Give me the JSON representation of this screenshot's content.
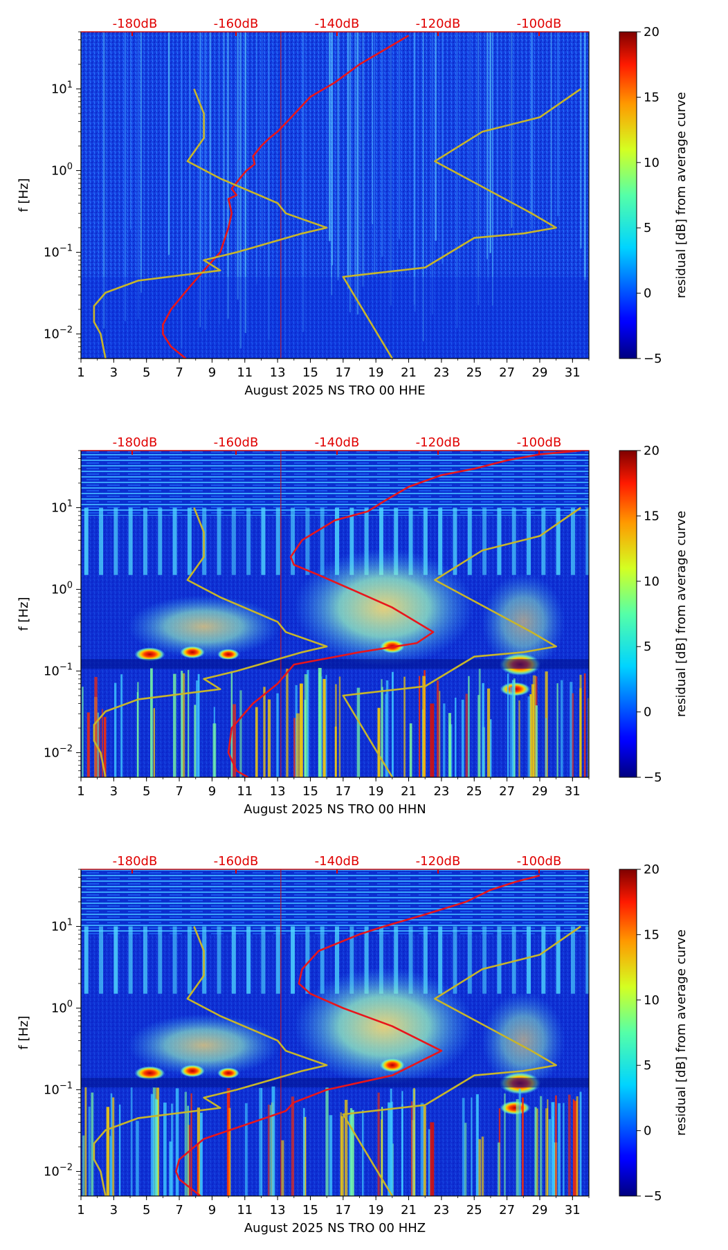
{
  "chart_data": [
    {
      "type": "heatmap",
      "title": "",
      "xlabel": "August 2025 NS TRO 00 HHE",
      "ylabel": "f [Hz]",
      "x_range": [
        1,
        32
      ],
      "x_ticks": [
        1,
        3,
        5,
        7,
        9,
        11,
        13,
        15,
        17,
        19,
        21,
        23,
        25,
        27,
        29,
        31
      ],
      "y_scale": "log",
      "y_range": [
        0.005,
        50
      ],
      "y_ticks": [
        {
          "value": 0.01,
          "base": "10",
          "exp": "−2"
        },
        {
          "value": 0.1,
          "base": "10",
          "exp": "−1"
        },
        {
          "value": 1,
          "base": "10",
          "exp": "0"
        },
        {
          "value": 10,
          "base": "10",
          "exp": "1"
        }
      ],
      "db_axis": {
        "labels": [
          "-180dB",
          "-160dB",
          "-140dB",
          "-120dB",
          "-100dB"
        ],
        "positions_day": [
          5.0,
          12.8,
          20.5,
          28.3,
          36.0
        ]
      },
      "colorbar": {
        "label": "residual [dB] from average curve",
        "min": -5,
        "max": 20,
        "ticks": [
          "−5",
          "0",
          "5",
          "10",
          "15",
          "20"
        ],
        "tick_values": [
          -5,
          0,
          5,
          10,
          15,
          20
        ]
      },
      "series": [
        {
          "name": "average PSD curve",
          "color": "#e8151b",
          "points": [
            [
              7.4,
              0.005
            ],
            [
              6.5,
              0.007
            ],
            [
              6.0,
              0.01
            ],
            [
              6.0,
              0.013
            ],
            [
              6.5,
              0.02
            ],
            [
              7.5,
              0.035
            ],
            [
              8.5,
              0.06
            ],
            [
              9.5,
              0.1
            ],
            [
              10.0,
              0.2
            ],
            [
              10.2,
              0.3
            ],
            [
              10.0,
              0.45
            ],
            [
              10.5,
              0.5
            ],
            [
              10.2,
              0.6
            ],
            [
              10.8,
              0.85
            ],
            [
              11.1,
              1.0
            ],
            [
              11.6,
              1.2
            ],
            [
              11.5,
              1.5
            ],
            [
              12.0,
              2.0
            ],
            [
              12.5,
              2.5
            ],
            [
              13.0,
              3.0
            ],
            [
              13.6,
              4.0
            ],
            [
              15.0,
              8.0
            ],
            [
              16.5,
              12.0
            ],
            [
              18.0,
              20.0
            ],
            [
              19.5,
              30.0
            ],
            [
              21.0,
              45.0
            ]
          ]
        },
        {
          "name": "low noise model",
          "color": "#c8b62a",
          "points": [
            [
              2.5,
              0.005
            ],
            [
              2.2,
              0.01
            ],
            [
              1.8,
              0.014
            ],
            [
              1.8,
              0.022
            ],
            [
              2.5,
              0.032
            ],
            [
              4.5,
              0.045
            ],
            [
              9.5,
              0.06
            ],
            [
              8.5,
              0.08
            ],
            [
              10.5,
              0.1
            ],
            [
              14.5,
              0.17
            ],
            [
              16.0,
              0.2
            ],
            [
              13.5,
              0.3
            ],
            [
              13.0,
              0.4
            ],
            [
              9.5,
              0.8
            ],
            [
              7.5,
              1.3
            ],
            [
              8.5,
              2.5
            ],
            [
              8.5,
              5.0
            ],
            [
              7.9,
              10.0
            ]
          ]
        },
        {
          "name": "high noise model",
          "color": "#c8b62a",
          "points": [
            [
              20.0,
              0.005
            ],
            [
              17.0,
              0.05
            ],
            [
              22.0,
              0.065
            ],
            [
              25.0,
              0.15
            ],
            [
              28.0,
              0.17
            ],
            [
              30.0,
              0.2
            ],
            [
              28.5,
              0.3
            ],
            [
              22.6,
              1.3
            ],
            [
              25.5,
              3.0
            ],
            [
              29.0,
              4.5
            ],
            [
              31.5,
              10.0
            ]
          ]
        }
      ]
    },
    {
      "type": "heatmap",
      "title": "",
      "xlabel": "August 2025 NS TRO 00 HHN",
      "ylabel": "f [Hz]",
      "x_range": [
        1,
        32
      ],
      "x_ticks": [
        1,
        3,
        5,
        7,
        9,
        11,
        13,
        15,
        17,
        19,
        21,
        23,
        25,
        27,
        29,
        31
      ],
      "y_scale": "log",
      "y_range": [
        0.005,
        50
      ],
      "y_ticks": [
        {
          "value": 0.01,
          "base": "10",
          "exp": "−2"
        },
        {
          "value": 0.1,
          "base": "10",
          "exp": "−1"
        },
        {
          "value": 1,
          "base": "10",
          "exp": "0"
        },
        {
          "value": 10,
          "base": "10",
          "exp": "1"
        }
      ],
      "db_axis": {
        "labels": [
          "-180dB",
          "-160dB",
          "-140dB",
          "-120dB",
          "-100dB"
        ],
        "positions_day": [
          5.0,
          12.8,
          20.5,
          28.3,
          36.0
        ]
      },
      "colorbar": {
        "label": "residual [dB] from average curve",
        "min": -5,
        "max": 20,
        "ticks": [
          "−5",
          "0",
          "5",
          "10",
          "15",
          "20"
        ],
        "tick_values": [
          -5,
          0,
          5,
          10,
          15,
          20
        ]
      },
      "series": [
        {
          "name": "average PSD curve",
          "color": "#e8151b",
          "points": [
            [
              11.2,
              0.005
            ],
            [
              10.5,
              0.006
            ],
            [
              10.0,
              0.01
            ],
            [
              10.2,
              0.02
            ],
            [
              11.5,
              0.04
            ],
            [
              13.0,
              0.07
            ],
            [
              14.0,
              0.12
            ],
            [
              18.0,
              0.17
            ],
            [
              21.5,
              0.22
            ],
            [
              22.5,
              0.3
            ],
            [
              20.0,
              0.6
            ],
            [
              17.5,
              1.0
            ],
            [
              15.5,
              1.5
            ],
            [
              14.0,
              2.0
            ],
            [
              13.8,
              2.5
            ],
            [
              14.5,
              4.0
            ],
            [
              16.5,
              7.0
            ],
            [
              18.5,
              9.0
            ],
            [
              19.5,
              12.0
            ],
            [
              21.0,
              18.0
            ],
            [
              23.0,
              25.0
            ],
            [
              25.0,
              30.0
            ],
            [
              27.0,
              38.0
            ],
            [
              29.0,
              45.0
            ],
            [
              31.5,
              50.0
            ]
          ]
        },
        {
          "name": "low noise model",
          "color": "#c8b62a",
          "points": [
            [
              2.5,
              0.005
            ],
            [
              2.2,
              0.01
            ],
            [
              1.8,
              0.014
            ],
            [
              1.8,
              0.022
            ],
            [
              2.5,
              0.032
            ],
            [
              4.5,
              0.045
            ],
            [
              9.5,
              0.06
            ],
            [
              8.5,
              0.08
            ],
            [
              10.5,
              0.1
            ],
            [
              14.5,
              0.17
            ],
            [
              16.0,
              0.2
            ],
            [
              13.5,
              0.3
            ],
            [
              13.0,
              0.4
            ],
            [
              9.5,
              0.8
            ],
            [
              7.5,
              1.3
            ],
            [
              8.5,
              2.5
            ],
            [
              8.5,
              5.0
            ],
            [
              7.9,
              10.0
            ]
          ]
        },
        {
          "name": "high noise model",
          "color": "#c8b62a",
          "points": [
            [
              20.0,
              0.005
            ],
            [
              17.0,
              0.05
            ],
            [
              22.0,
              0.065
            ],
            [
              25.0,
              0.15
            ],
            [
              28.0,
              0.17
            ],
            [
              30.0,
              0.2
            ],
            [
              28.5,
              0.3
            ],
            [
              22.6,
              1.3
            ],
            [
              25.5,
              3.0
            ],
            [
              29.0,
              4.5
            ],
            [
              31.5,
              10.0
            ]
          ]
        }
      ]
    },
    {
      "type": "heatmap",
      "title": "",
      "xlabel": "August 2025 NS TRO 00 HHZ",
      "ylabel": "f [Hz]",
      "x_range": [
        1,
        32
      ],
      "x_ticks": [
        1,
        3,
        5,
        7,
        9,
        11,
        13,
        15,
        17,
        19,
        21,
        23,
        25,
        27,
        29,
        31
      ],
      "y_scale": "log",
      "y_range": [
        0.005,
        50
      ],
      "y_ticks": [
        {
          "value": 0.01,
          "base": "10",
          "exp": "−2"
        },
        {
          "value": 0.1,
          "base": "10",
          "exp": "−1"
        },
        {
          "value": 1,
          "base": "10",
          "exp": "0"
        },
        {
          "value": 10,
          "base": "10",
          "exp": "1"
        }
      ],
      "db_axis": {
        "labels": [
          "-180dB",
          "-160dB",
          "-140dB",
          "-120dB",
          "-100dB"
        ],
        "positions_day": [
          5.0,
          12.8,
          20.5,
          28.3,
          36.0
        ]
      },
      "colorbar": {
        "label": "residual [dB] from average curve",
        "min": -5,
        "max": 20,
        "ticks": [
          "−5",
          "0",
          "5",
          "10",
          "15",
          "20"
        ],
        "tick_values": [
          -5,
          0,
          5,
          10,
          15,
          20
        ]
      },
      "series": [
        {
          "name": "average PSD curve",
          "color": "#e8151b",
          "points": [
            [
              8.3,
              0.005
            ],
            [
              7.0,
              0.008
            ],
            [
              6.8,
              0.01
            ],
            [
              7.0,
              0.014
            ],
            [
              8.5,
              0.025
            ],
            [
              11.5,
              0.04
            ],
            [
              13.5,
              0.055
            ],
            [
              14.0,
              0.07
            ],
            [
              16.0,
              0.1
            ],
            [
              20.0,
              0.15
            ],
            [
              23.0,
              0.3
            ],
            [
              20.0,
              0.6
            ],
            [
              17.0,
              1.0
            ],
            [
              15.0,
              1.5
            ],
            [
              14.3,
              2.0
            ],
            [
              14.5,
              3.0
            ],
            [
              15.5,
              5.0
            ],
            [
              18.0,
              8.0
            ],
            [
              19.5,
              10.0
            ],
            [
              22.0,
              14.0
            ],
            [
              24.5,
              20.0
            ],
            [
              26.0,
              28.0
            ],
            [
              27.5,
              35.0
            ],
            [
              29.0,
              42.0
            ]
          ]
        },
        {
          "name": "low noise model",
          "color": "#c8b62a",
          "points": [
            [
              2.5,
              0.005
            ],
            [
              2.2,
              0.01
            ],
            [
              1.8,
              0.014
            ],
            [
              1.8,
              0.022
            ],
            [
              2.5,
              0.032
            ],
            [
              4.5,
              0.045
            ],
            [
              9.5,
              0.06
            ],
            [
              8.5,
              0.08
            ],
            [
              10.5,
              0.1
            ],
            [
              14.5,
              0.17
            ],
            [
              16.0,
              0.2
            ],
            [
              13.5,
              0.3
            ],
            [
              13.0,
              0.4
            ],
            [
              9.5,
              0.8
            ],
            [
              7.5,
              1.3
            ],
            [
              8.5,
              2.5
            ],
            [
              8.5,
              5.0
            ],
            [
              7.9,
              10.0
            ]
          ]
        },
        {
          "name": "high noise model",
          "color": "#c8b62a",
          "points": [
            [
              20.0,
              0.005
            ],
            [
              17.0,
              0.05
            ],
            [
              22.0,
              0.065
            ],
            [
              25.0,
              0.15
            ],
            [
              28.0,
              0.17
            ],
            [
              30.0,
              0.2
            ],
            [
              28.5,
              0.3
            ],
            [
              22.6,
              1.3
            ],
            [
              25.5,
              3.0
            ],
            [
              29.0,
              4.5
            ],
            [
              31.5,
              10.0
            ]
          ]
        }
      ]
    }
  ]
}
